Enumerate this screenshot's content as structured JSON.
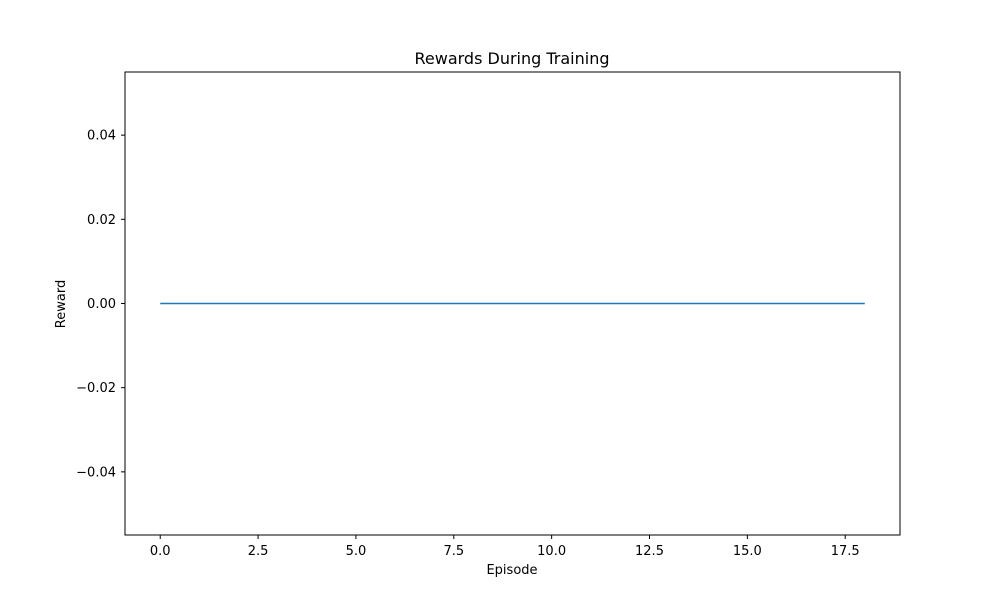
{
  "chart_data": {
    "type": "line",
    "title": "Rewards During Training",
    "xlabel": "Episode",
    "ylabel": "Reward",
    "xlim": [
      -0.9,
      18.9
    ],
    "ylim": [
      -0.055,
      0.055
    ],
    "xticks": [
      0.0,
      2.5,
      5.0,
      7.5,
      10.0,
      12.5,
      15.0,
      17.5
    ],
    "xtick_labels": [
      "0.0",
      "2.5",
      "5.0",
      "7.5",
      "10.0",
      "12.5",
      "15.0",
      "17.5"
    ],
    "yticks": [
      -0.04,
      -0.02,
      0.0,
      0.02,
      0.04
    ],
    "ytick_labels": [
      "−0.04",
      "−0.02",
      "0.00",
      "0.02",
      "0.04"
    ],
    "grid": false,
    "legend": "none",
    "series": [
      {
        "color": "#1f77b4",
        "x": [
          0,
          1,
          2,
          3,
          4,
          5,
          6,
          7,
          8,
          9,
          10,
          11,
          12,
          13,
          14,
          15,
          16,
          17,
          18
        ],
        "values": [
          0,
          0,
          0,
          0,
          0,
          0,
          0,
          0,
          0,
          0,
          0,
          0,
          0,
          0,
          0,
          0,
          0,
          0,
          0
        ]
      }
    ]
  }
}
